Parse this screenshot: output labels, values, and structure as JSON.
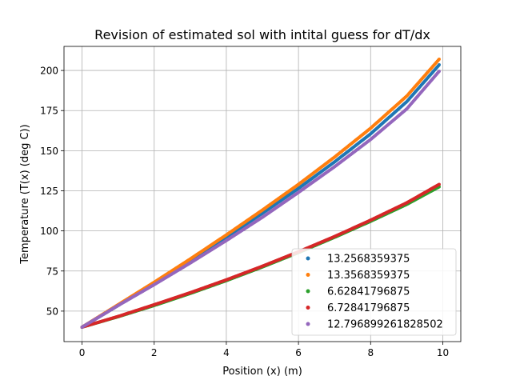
{
  "chart_data": {
    "type": "scatter",
    "title": "Revision of estimated sol with intital guess for dT/dx",
    "xlabel": "Position (x) (m)",
    "ylabel": "Temperature (T(x) (deg C))",
    "xlim": [
      -0.5,
      10.5
    ],
    "ylim": [
      31,
      215
    ],
    "x_ticks": [
      0,
      2,
      4,
      6,
      8,
      10
    ],
    "y_ticks": [
      50,
      75,
      100,
      125,
      150,
      175,
      200
    ],
    "x_tick_labels": [
      "0",
      "2",
      "4",
      "6",
      "8",
      "10"
    ],
    "y_tick_labels": [
      "50",
      "75",
      "100",
      "125",
      "150",
      "175",
      "200"
    ],
    "grid": true,
    "legend_position": "bottom-right",
    "series": [
      {
        "name": "13.2568359375",
        "color": "#1f77b4",
        "x": [
          0,
          1,
          2,
          3,
          4,
          5,
          6,
          7,
          8,
          9,
          9.9
        ],
        "y": [
          40,
          53.5,
          67.5,
          81.5,
          96,
          111,
          126.5,
          143,
          160.5,
          180.5,
          203.5
        ]
      },
      {
        "name": "13.3568359375",
        "color": "#ff7f0e",
        "x": [
          0,
          1,
          2,
          3,
          4,
          5,
          6,
          7,
          8,
          9,
          9.9
        ],
        "y": [
          40,
          54,
          68,
          82.5,
          97.5,
          113,
          129,
          146,
          164,
          184,
          207
        ]
      },
      {
        "name": "6.62841796875",
        "color": "#2ca02c",
        "x": [
          0,
          1,
          2,
          3,
          4,
          5,
          6,
          7,
          8,
          9,
          9.9
        ],
        "y": [
          40,
          46.5,
          53.5,
          61,
          69,
          77.5,
          86.5,
          96,
          106,
          116.5,
          127.5
        ]
      },
      {
        "name": "6.72841796875",
        "color": "#d62728",
        "x": [
          0,
          1,
          2,
          3,
          4,
          5,
          6,
          7,
          8,
          9,
          9.9
        ],
        "y": [
          40,
          46.7,
          54,
          61.5,
          69.5,
          78,
          87,
          96.5,
          106.7,
          117.5,
          129
        ]
      },
      {
        "name": "12.796899261828502",
        "color": "#9467bd",
        "x": [
          0,
          1,
          2,
          3,
          4,
          5,
          6,
          7,
          8,
          9,
          9.9
        ],
        "y": [
          40,
          53.5,
          66.5,
          80,
          94,
          108.5,
          124,
          140,
          157,
          176,
          199.5
        ]
      }
    ]
  }
}
